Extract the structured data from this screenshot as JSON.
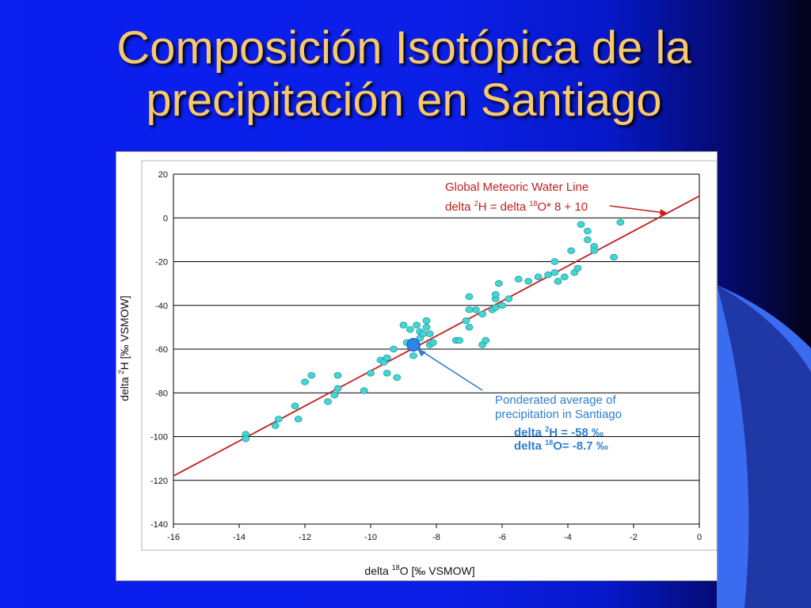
{
  "slide": {
    "title_line1": "Composición Isotópica de la",
    "title_line2": "precipitación en Santiago"
  },
  "colors": {
    "background": "#0b1fe6",
    "title": "#f8c96a",
    "points": "#44d6d6",
    "gmwl_line": "#c0201e",
    "average_marker": "#2c86e8",
    "annotation_blue": "#2c7fd0"
  },
  "chart_data": {
    "type": "scatter",
    "title": "",
    "xlabel": "delta ¹⁸O [‰ VSMOW]",
    "ylabel": "delta ²H [‰ VSMOW]",
    "xlim": [
      -16,
      0
    ],
    "ylim": [
      -140,
      20
    ],
    "x_ticks": [
      -16,
      -14,
      -12,
      -10,
      -8,
      -6,
      -4,
      -2,
      0
    ],
    "y_ticks": [
      20,
      0,
      -20,
      -40,
      -60,
      -80,
      -100,
      -120,
      -140
    ],
    "grid": "horizontal",
    "points": [
      [
        -13.8,
        -99
      ],
      [
        -13.8,
        -101
      ],
      [
        -12.9,
        -95
      ],
      [
        -12.8,
        -92
      ],
      [
        -12.3,
        -86
      ],
      [
        -12.2,
        -92
      ],
      [
        -12.0,
        -75
      ],
      [
        -11.8,
        -72
      ],
      [
        -11.3,
        -84
      ],
      [
        -11.1,
        -81
      ],
      [
        -11.0,
        -78
      ],
      [
        -11.0,
        -72
      ],
      [
        -10.2,
        -79
      ],
      [
        -10.0,
        -71
      ],
      [
        -9.7,
        -65
      ],
      [
        -9.6,
        -66
      ],
      [
        -9.5,
        -71
      ],
      [
        -9.5,
        -64
      ],
      [
        -9.3,
        -60
      ],
      [
        -9.2,
        -73
      ],
      [
        -9.0,
        -49
      ],
      [
        -8.9,
        -57
      ],
      [
        -8.8,
        -51
      ],
      [
        -8.7,
        -63
      ],
      [
        -8.6,
        -59
      ],
      [
        -8.6,
        -49
      ],
      [
        -8.5,
        -55
      ],
      [
        -8.5,
        -52
      ],
      [
        -8.4,
        -53
      ],
      [
        -8.3,
        -50
      ],
      [
        -8.3,
        -47
      ],
      [
        -8.2,
        -53
      ],
      [
        -8.2,
        -58
      ],
      [
        -8.1,
        -57
      ],
      [
        -7.4,
        -56
      ],
      [
        -7.3,
        -56
      ],
      [
        -7.1,
        -47
      ],
      [
        -7.0,
        -42
      ],
      [
        -7.0,
        -50
      ],
      [
        -7.0,
        -36
      ],
      [
        -6.8,
        -42
      ],
      [
        -6.6,
        -44
      ],
      [
        -6.6,
        -58
      ],
      [
        -6.5,
        -56
      ],
      [
        -6.3,
        -42
      ],
      [
        -6.2,
        -41
      ],
      [
        -6.2,
        -37
      ],
      [
        -6.2,
        -35
      ],
      [
        -6.1,
        -30
      ],
      [
        -6.0,
        -40
      ],
      [
        -5.8,
        -37
      ],
      [
        -5.5,
        -28
      ],
      [
        -5.2,
        -29
      ],
      [
        -4.9,
        -27
      ],
      [
        -4.6,
        -26
      ],
      [
        -4.4,
        -25
      ],
      [
        -4.4,
        -20
      ],
      [
        -4.3,
        -29
      ],
      [
        -4.1,
        -27
      ],
      [
        -3.9,
        -15
      ],
      [
        -3.8,
        -25
      ],
      [
        -3.7,
        -23
      ],
      [
        -3.6,
        -3
      ],
      [
        -3.4,
        -6
      ],
      [
        -3.4,
        -10
      ],
      [
        -3.2,
        -13
      ],
      [
        -3.2,
        -15
      ],
      [
        -2.6,
        -18
      ],
      [
        -2.4,
        -2
      ]
    ],
    "weighted_average": {
      "x": -8.7,
      "y": -58
    },
    "gmwl": {
      "slope": 8,
      "intercept": 10,
      "label_line1": "Global Meteoric Water Line",
      "label_line2_a": "delta ",
      "label_line2_sup1": "2",
      "label_line2_b": "H = delta ",
      "label_line2_sup2": "18",
      "label_line2_c": "O* 8 + 10"
    },
    "annotation": {
      "line1": "Ponderated average of",
      "line2": "precipitation in Santiago",
      "line3_a": "delta ",
      "line3_sup": "2",
      "line3_b": "H = -58 ‰",
      "line4_a": "delta ",
      "line4_sup": "18",
      "line4_b": "O= -8.7 ‰"
    },
    "xlabel_parts": {
      "a": "delta ",
      "sup": "18",
      "b": "O [‰ VSMOW]"
    },
    "ylabel_parts": {
      "a": "delta ",
      "sup": "2",
      "b": "H [‰ VSMOW]"
    }
  }
}
